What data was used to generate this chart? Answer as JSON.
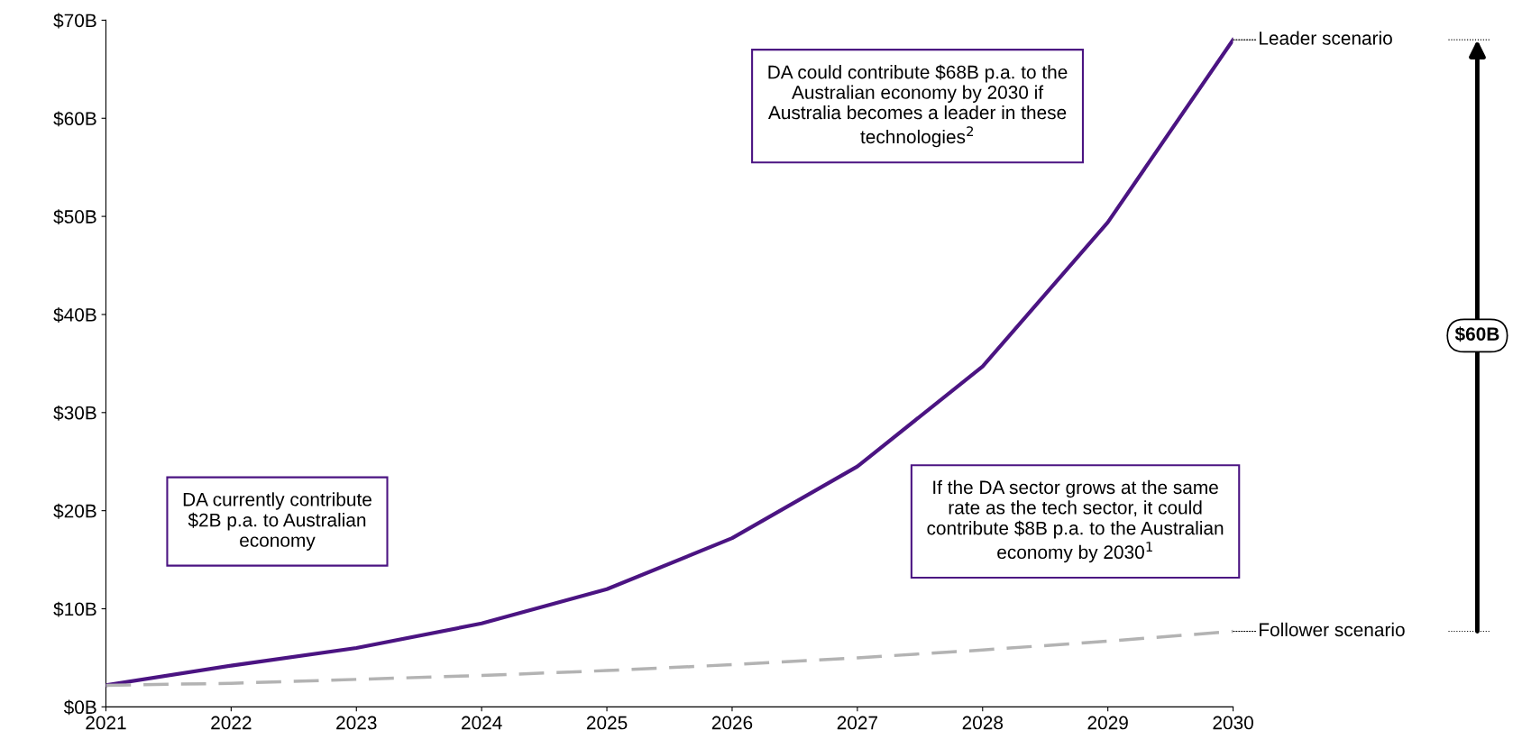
{
  "chart_data": {
    "type": "line",
    "x": [
      2021,
      2022,
      2023,
      2024,
      2025,
      2026,
      2027,
      2028,
      2029,
      2030
    ],
    "series": [
      {
        "name": "Leader scenario",
        "color": "#4b1482",
        "line_style": "solid",
        "values": [
          2.2,
          4.2,
          6.0,
          8.5,
          12.0,
          17.2,
          24.5,
          34.7,
          49.4,
          68
        ]
      },
      {
        "name": "Follower scenario",
        "color": "#b3b3b3",
        "line_style": "dashed",
        "values": [
          2.2,
          2.4,
          2.8,
          3.2,
          3.7,
          4.3,
          5.0,
          5.8,
          6.7,
          7.7
        ]
      }
    ],
    "xlim": [
      2021,
      2030
    ],
    "xticks": [
      2021,
      2022,
      2023,
      2024,
      2025,
      2026,
      2027,
      2028,
      2029,
      2030
    ],
    "ylim": [
      0,
      70
    ],
    "yticks": [
      {
        "value": 0,
        "label": "$0B"
      },
      {
        "value": 10,
        "label": "$10B"
      },
      {
        "value": 20,
        "label": "$20B"
      },
      {
        "value": 30,
        "label": "$30B"
      },
      {
        "value": 40,
        "label": "$40B"
      },
      {
        "value": 50,
        "label": "$50B"
      },
      {
        "value": 60,
        "label": "$60B"
      },
      {
        "value": 70,
        "label": "$70B"
      }
    ],
    "grid": false,
    "legend": false,
    "marker": "none",
    "annotations": [
      "DA currently contribute\n$2B p.a. to Australian\neconomy",
      "DA could contribute $68B p.a. to the\nAustralian economy by 2030 if\nAustralia becomes a leader in these\ntechnologies$^{2}$",
      "If the DA sector grows at the same\nrate as the tech sector, it could\ncontribute $8B p.a. to the Australian\neconomy by 2030$^{1}$",
      "$60B"
    ]
  }
}
